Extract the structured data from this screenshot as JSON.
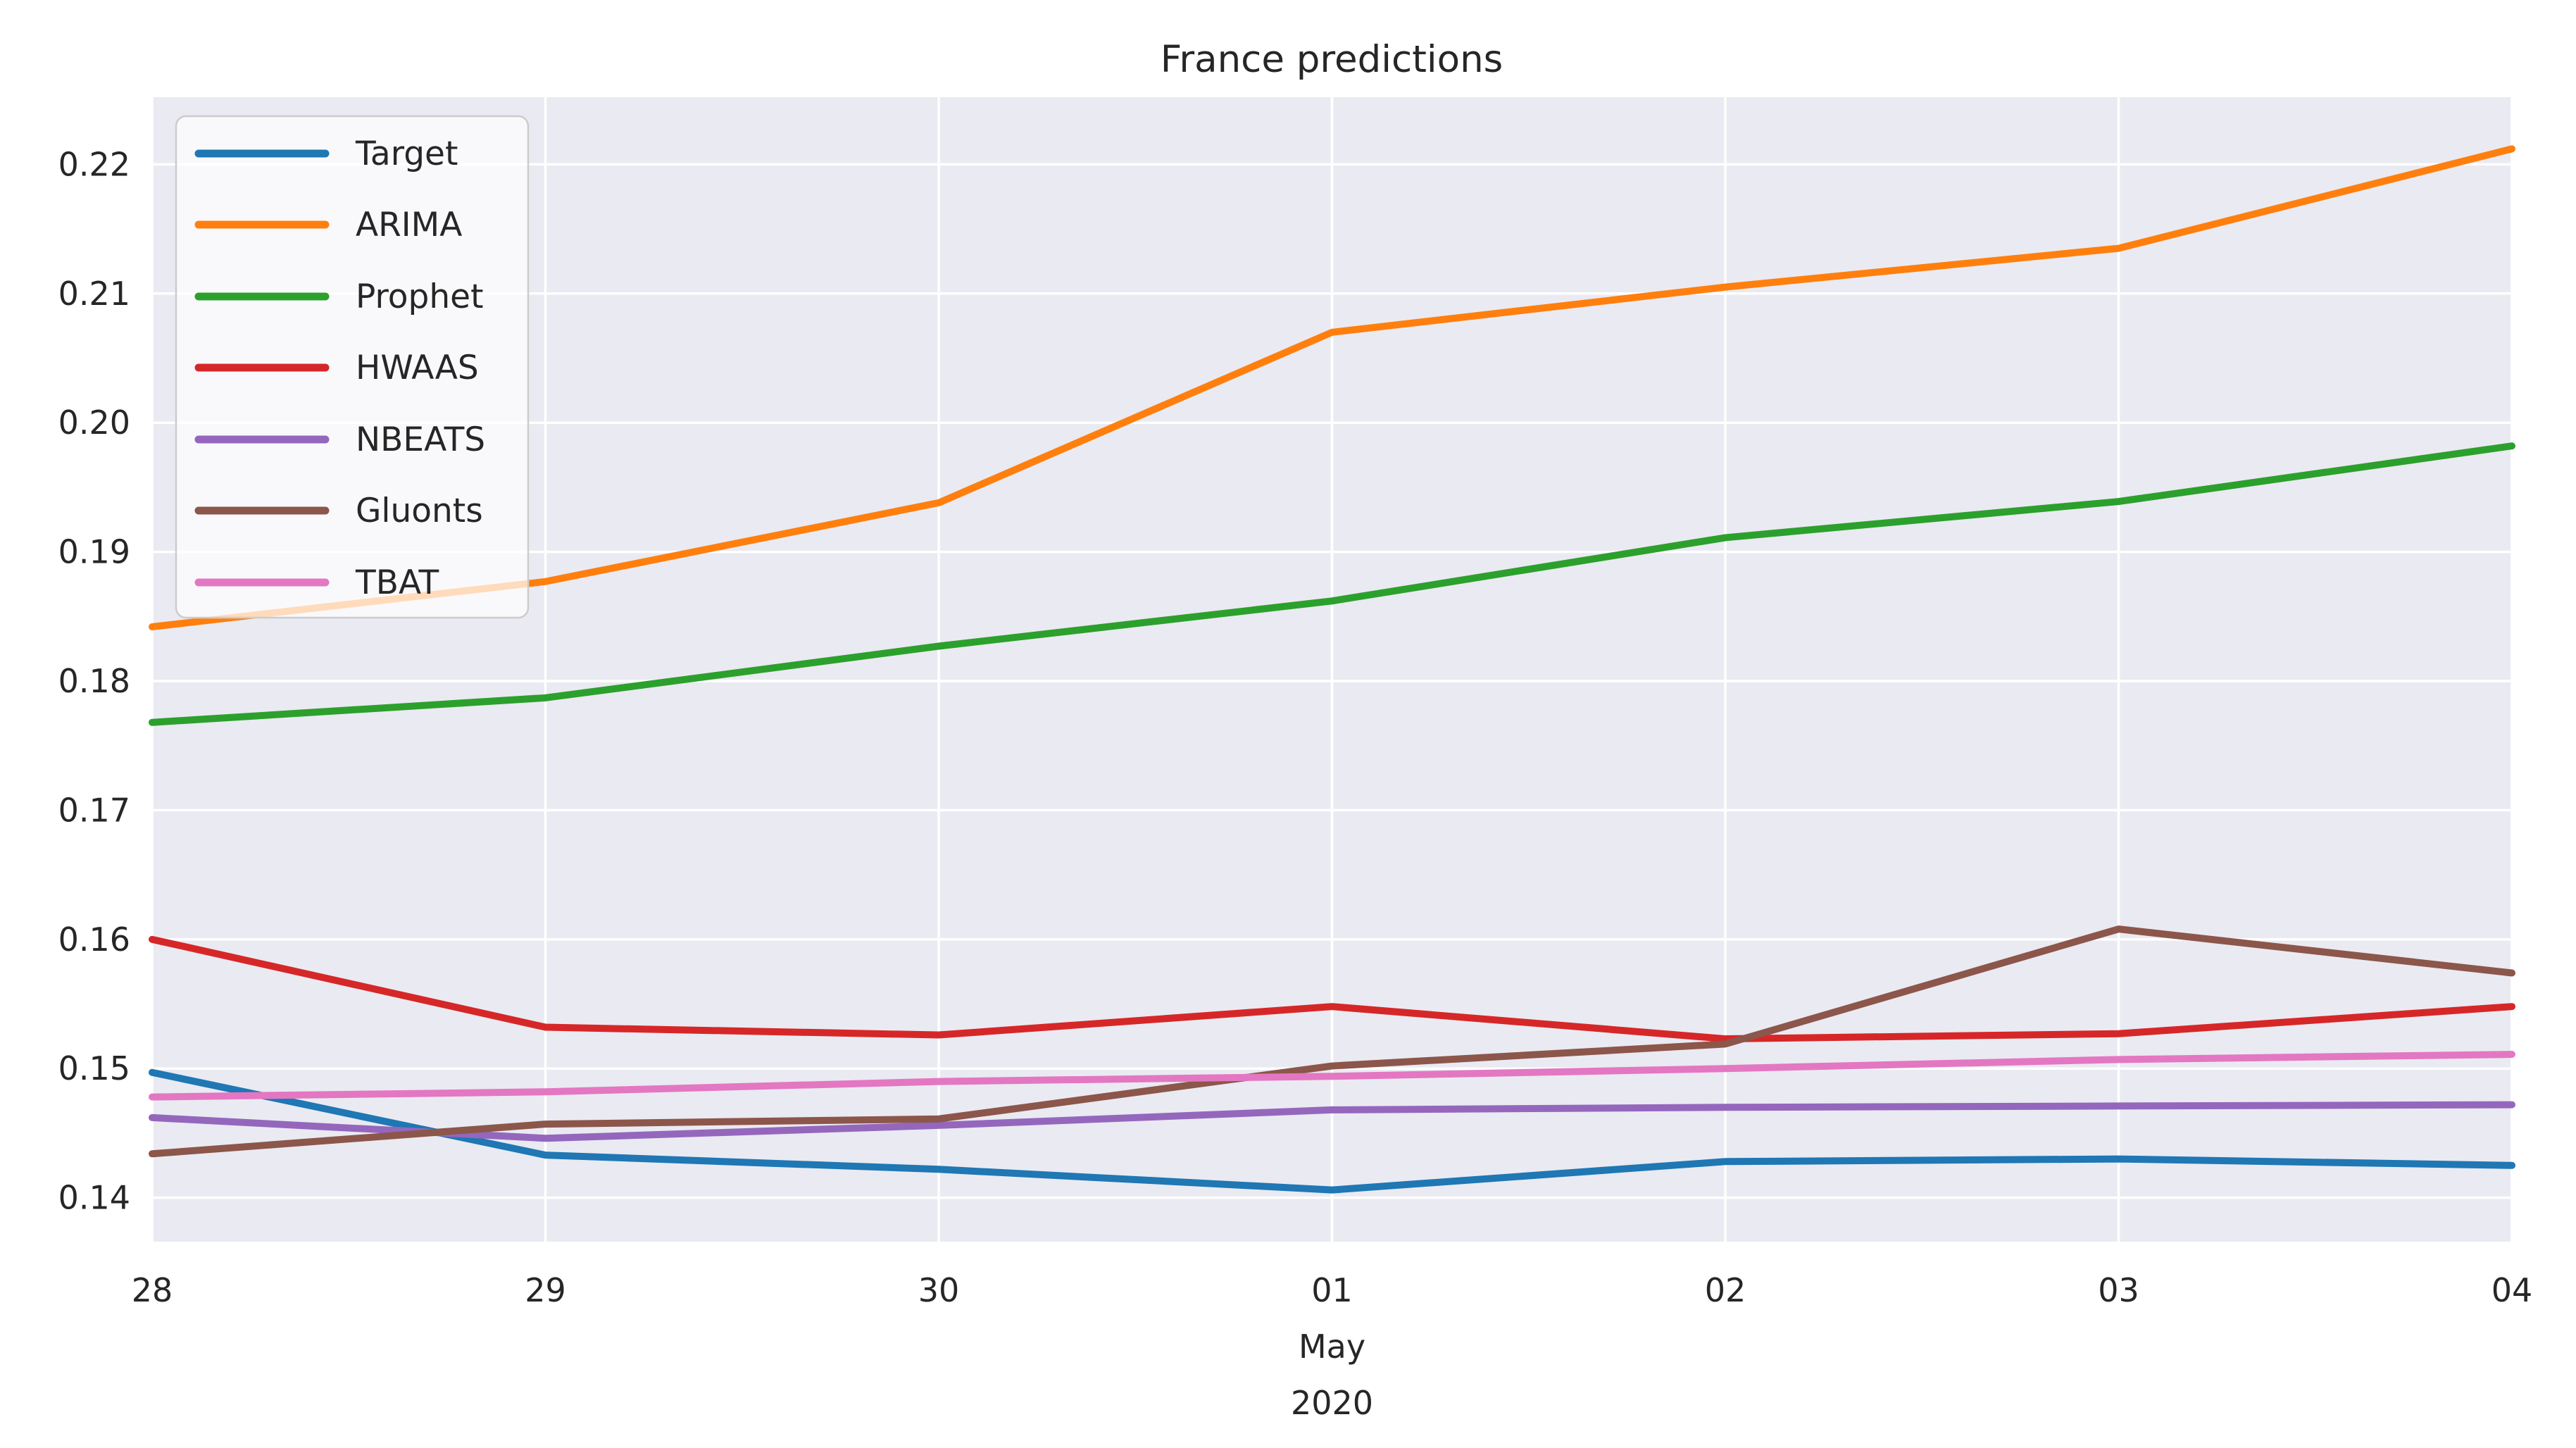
{
  "title": "France predictions",
  "chart_data": {
    "type": "line",
    "title": "France predictions",
    "x_tick_labels": [
      "28",
      "29",
      "30",
      "01",
      "02",
      "03",
      "04"
    ],
    "x_secondary_labels": [
      "May",
      "2020"
    ],
    "x_secondary_anchor_index": 3,
    "y_tick_labels": [
      "0.14",
      "0.15",
      "0.16",
      "0.17",
      "0.18",
      "0.19",
      "0.20",
      "0.21",
      "0.22"
    ],
    "y_ticks": [
      0.14,
      0.15,
      0.16,
      0.17,
      0.18,
      0.19,
      0.2,
      0.21,
      0.22
    ],
    "ylim": [
      0.1366,
      0.2252
    ],
    "grid": true,
    "legend_position": "upper left",
    "plot_bg_color": "#eaeaf2",
    "grid_color": "#ffffff",
    "text_color": "#262626",
    "series": [
      {
        "name": "Target",
        "color": "#1f77b4",
        "values": [
          0.1497,
          0.1433,
          0.1422,
          0.1406,
          0.1428,
          0.143,
          0.1425
        ]
      },
      {
        "name": "ARIMA",
        "color": "#ff7f0e",
        "values": [
          0.1842,
          0.1877,
          0.1938,
          0.207,
          0.2105,
          0.2135,
          0.2212
        ]
      },
      {
        "name": "Prophet",
        "color": "#2ca02c",
        "values": [
          0.1768,
          0.1787,
          0.1827,
          0.1862,
          0.1911,
          0.1939,
          0.1982
        ]
      },
      {
        "name": "HWAAS",
        "color": "#d62728",
        "values": [
          0.16,
          0.1532,
          0.1526,
          0.1548,
          0.1523,
          0.1527,
          0.1548
        ]
      },
      {
        "name": "NBEATS",
        "color": "#9467bd",
        "values": [
          0.1462,
          0.1446,
          0.1456,
          0.1468,
          0.147,
          0.1471,
          0.1472
        ]
      },
      {
        "name": "Gluonts",
        "color": "#8c564b",
        "values": [
          0.1434,
          0.1457,
          0.1461,
          0.1502,
          0.1519,
          0.1608,
          0.1574
        ]
      },
      {
        "name": "TBAT",
        "color": "#e377c2",
        "values": [
          0.1478,
          0.1482,
          0.149,
          0.1494,
          0.15,
          0.1507,
          0.1511
        ]
      }
    ]
  }
}
